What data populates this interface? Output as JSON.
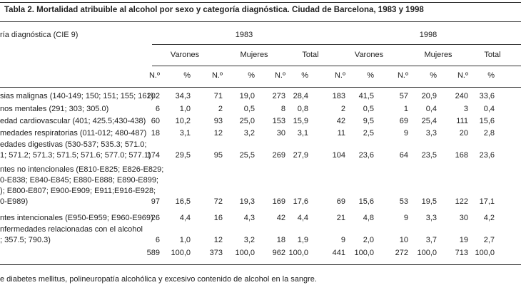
{
  "title": "Tabla 2. Mortalidad atribuible al alcohol por sexo y categoría diagnóstica. Ciudad de Barcelona, 1983 y 1998",
  "row_header": "ría diagnóstica (CIE 9)",
  "years": [
    "1983",
    "1998"
  ],
  "groups": [
    "Varones",
    "Mujeres",
    "Total"
  ],
  "sub": [
    "N.º",
    "%"
  ],
  "rows": [
    {
      "label": [
        "sias malignas (140-149; 150; 151; 155; 161)"
      ],
      "values": [
        "202",
        "34,3",
        "71",
        "19,0",
        "273",
        "28,4",
        "183",
        "41,5",
        "57",
        "20,9",
        "240",
        "33,6"
      ]
    },
    {
      "label": [
        "nos mentales (291; 303; 305.0)"
      ],
      "values": [
        "6",
        "1,0",
        "2",
        "0,5",
        "8",
        "0,8",
        "2",
        "0,5",
        "1",
        "0,4",
        "3",
        "0,4"
      ]
    },
    {
      "label": [
        "edad cardiovascular (401; 425.5;430-438)"
      ],
      "values": [
        "60",
        "10,2",
        "93",
        "25,0",
        "153",
        "15,9",
        "42",
        "9,5",
        "69",
        "25,4",
        "111",
        "15,6"
      ]
    },
    {
      "label": [
        "medades respiratorias (011-012; 480-487)"
      ],
      "values": [
        "18",
        "3,1",
        "12",
        "3,2",
        "30",
        "3,1",
        "11",
        "2,5",
        "9",
        "3,3",
        "20",
        "2,8"
      ]
    },
    {
      "label": [
        "edades digestivas (530-537; 535.3; 571.0;",
        "1; 571.2; 571.3; 571.5; 571.6; 577.0; 577.1)"
      ],
      "values": [
        "174",
        "29,5",
        "95",
        "25,5",
        "269",
        "27,9",
        "104",
        "23,6",
        "64",
        "23,5",
        "168",
        "23,6"
      ]
    },
    {
      "label": [
        "ntes no intencionales (E810-E825; E826-E829;",
        "0-E838; E840-E845; E880-E888; E890-E899;",
        "); E800-E807; E900-E909; E911;E916-E928;",
        "0-E989)"
      ],
      "values": [
        "97",
        "16,5",
        "72",
        "19,3",
        "169",
        "17,6",
        "69",
        "15,6",
        "53",
        "19,5",
        "122",
        "17,1"
      ]
    },
    {
      "label": [
        "ntes intencionales (E950-E959; E960-E969)"
      ],
      "values": [
        "26",
        "4,4",
        "16",
        "4,3",
        "42",
        "4,4",
        "21",
        "4,8",
        "9",
        "3,3",
        "30",
        "4,2"
      ]
    },
    {
      "label": [
        "nfermedades relacionadas con el alcohol",
        "; 357.5; 790.3)"
      ],
      "values": [
        "6",
        "1,0",
        "12",
        "3,2",
        "18",
        "1,9",
        "9",
        "2,0",
        "10",
        "3,7",
        "19",
        "2,7"
      ]
    },
    {
      "label": [
        ""
      ],
      "values": [
        "589",
        "100,0",
        "373",
        "100,0",
        "962",
        "100,0",
        "441",
        "100,0",
        "272",
        "100,0",
        "713",
        "100,0"
      ]
    }
  ],
  "footnote": "e diabetes mellitus, polineuropatía alcohólica y excesivo contenido de alcohol en la sangre."
}
